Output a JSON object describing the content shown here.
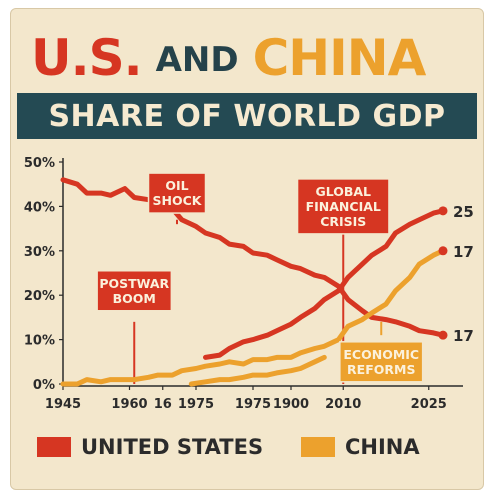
{
  "title": {
    "part1": "U.S.",
    "part2": "AND",
    "part3": "CHINA"
  },
  "subtitle": "SHARE OF WORLD GDP",
  "colors": {
    "us": "#d63622",
    "china": "#eca12d",
    "banner": "#244a53",
    "background": "#f3e7cc"
  },
  "legend": {
    "us_label": "UNITED STATES",
    "china_label": "CHINA"
  },
  "chart_data": {
    "type": "line",
    "ylim": [
      0,
      50
    ],
    "xlim": [
      1945,
      2025
    ],
    "ytick_labels": [
      "0%",
      "10%",
      "20%",
      "30%",
      "40%",
      "50%"
    ],
    "ytick_values": [
      0,
      10,
      20,
      30,
      40,
      50
    ],
    "xtick_labels": [
      "1945",
      "1960",
      "16",
      "1975",
      "1975",
      "1900",
      "2010",
      "2025"
    ],
    "xtick_positions": [
      1945,
      1959,
      1966,
      1973,
      1985,
      1993,
      2004,
      2022
    ],
    "grid": false,
    "series": [
      {
        "name": "UNITED STATES",
        "color": "#d63622",
        "x": [
          1945,
          1948,
          1950,
          1953,
          1955,
          1958,
          1960,
          1963,
          1965,
          1968,
          1970,
          1973,
          1975,
          1978,
          1980,
          1983,
          1985,
          1988,
          1990,
          1993,
          1995,
          1998,
          2000,
          2003,
          2005,
          2008,
          2010,
          2013,
          2015,
          2018,
          2020,
          2023,
          2025
        ],
        "values": [
          46,
          45,
          43,
          43,
          42.5,
          44,
          42,
          41.5,
          40,
          39.5,
          37,
          35.5,
          34,
          33,
          31.5,
          31,
          29.5,
          29,
          28,
          26.5,
          26,
          24.5,
          24,
          22,
          19,
          16.5,
          15,
          14.5,
          14,
          13,
          12,
          11.5,
          11
        ]
      },
      {
        "name": "CHINA",
        "color": "#eca12d",
        "x": [
          1945,
          1948,
          1950,
          1953,
          1955,
          1958,
          1960,
          1963,
          1965,
          1968,
          1970,
          1973,
          1975,
          1978,
          1980,
          1983,
          1985,
          1988,
          1990,
          1993,
          1995,
          1998,
          2000,
          2003,
          2005,
          2008,
          2010,
          2013,
          2015,
          2018,
          2020,
          2023,
          2025
        ],
        "values": [
          0,
          0,
          1,
          0.5,
          1,
          1,
          1,
          1.5,
          2,
          2,
          3,
          3.5,
          4,
          4.5,
          5,
          4.5,
          5.5,
          5.5,
          6,
          6,
          7,
          8,
          8.5,
          10,
          13,
          14.5,
          16,
          18,
          21,
          24,
          27,
          29,
          30
        ]
      },
      {
        "name": "",
        "color": "#d63622",
        "x": [
          1975,
          1978,
          1980,
          1983,
          1985,
          1988,
          1990,
          1993,
          1995,
          1998,
          2000,
          2003,
          2005,
          2008,
          2010,
          2013,
          2015,
          2018,
          2020,
          2023,
          2025
        ],
        "values": [
          6,
          6.5,
          8,
          9.5,
          10,
          11,
          12,
          13.5,
          15,
          17,
          19,
          21,
          24,
          27,
          29,
          31,
          34,
          36,
          37,
          38.5,
          39
        ]
      },
      {
        "name": "",
        "color": "#eca12d",
        "x": [
          1972,
          1975,
          1978,
          1980,
          1983,
          1985,
          1988,
          1990,
          1993,
          1995,
          1998,
          2000
        ],
        "values": [
          0,
          0.5,
          1,
          1,
          1.5,
          2,
          2,
          2.5,
          3,
          3.5,
          5,
          6
        ]
      }
    ],
    "end_labels": [
      {
        "text": "25",
        "x": 2025,
        "y": 39
      },
      {
        "text": "17",
        "x": 2025,
        "y": 30
      },
      {
        "text": "17",
        "x": 2025,
        "y": 11
      }
    ],
    "annotations": [
      {
        "lines": [
          "POSTWAR",
          "BOOM"
        ],
        "x": 1960,
        "y": 21,
        "style": "box-red",
        "line_from": 14,
        "line_to": 0
      },
      {
        "lines": [
          "OIL",
          "SHOCK"
        ],
        "x": 1969,
        "y": 43,
        "style": "box-red",
        "line_from": 37,
        "line_to": 36
      },
      {
        "lines": [
          "GLOBAL",
          "FINANCIAL",
          "CRISIS"
        ],
        "x": 2004,
        "y": 40,
        "style": "box-red",
        "line_from": 34,
        "line_to": 0
      },
      {
        "lines": [
          "ECONOMIC",
          "REFORMS"
        ],
        "x": 2012,
        "y": 5,
        "style": "box-gold",
        "line_from": 11,
        "line_to": 14
      }
    ]
  }
}
